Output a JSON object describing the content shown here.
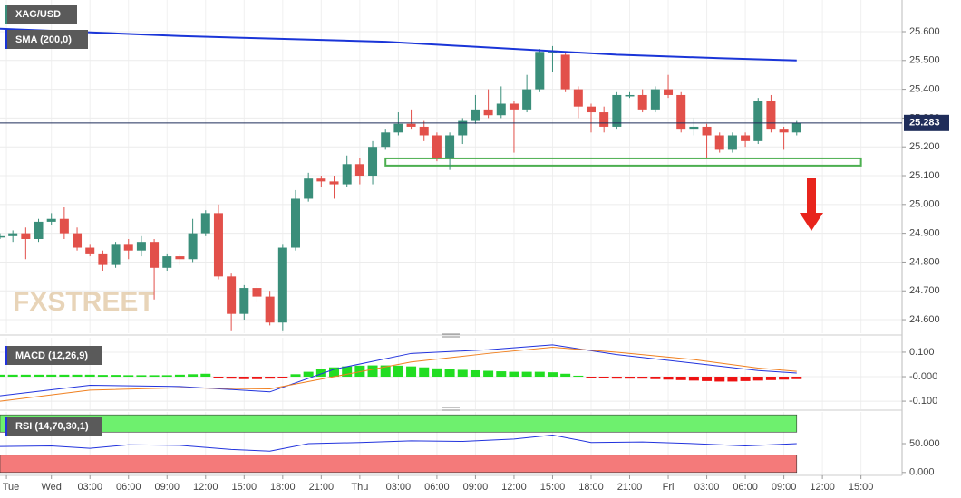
{
  "chart_data": [
    {
      "type": "candlestick",
      "title": "XAG/USD",
      "watermark": "FXSTREET",
      "up_color": "#3a8e7a",
      "down_color": "#e2504a",
      "xlim": [
        -4,
        66.2
      ],
      "ylim": [
        24.553,
        25.71
      ],
      "yticks": [
        {
          "value": 24.6,
          "label": "24.600"
        },
        {
          "value": 24.7,
          "label": "24.700"
        },
        {
          "value": 24.8,
          "label": "24.800"
        },
        {
          "value": 24.9,
          "label": "24.900"
        },
        {
          "value": 25.0,
          "label": "25.000"
        },
        {
          "value": 25.1,
          "label": "25.100"
        },
        {
          "value": 25.2,
          "label": "25.200"
        },
        {
          "value": 25.3,
          "label": "25.300"
        },
        {
          "value": 25.4,
          "label": "25.400"
        },
        {
          "value": 25.5,
          "label": "25.500"
        },
        {
          "value": 25.6,
          "label": "25.600"
        }
      ],
      "grid": true,
      "x": [
        -4,
        -3,
        -2,
        -1,
        0,
        1,
        2,
        3,
        4,
        5,
        6,
        7,
        8,
        9,
        10,
        11,
        12,
        13,
        14,
        15,
        16,
        17,
        18,
        19,
        20,
        21,
        22,
        23,
        24,
        25,
        26,
        27,
        28,
        29,
        30,
        31,
        32,
        33,
        34,
        35,
        36,
        37,
        38,
        39,
        40,
        41,
        42,
        43,
        44,
        45,
        46,
        47,
        48,
        49,
        50,
        51,
        52,
        53,
        54,
        55,
        56,
        57,
        58
      ],
      "open": [
        24.89,
        24.89,
        24.9,
        24.88,
        24.94,
        24.95,
        24.9,
        24.85,
        24.83,
        24.79,
        24.86,
        24.84,
        24.87,
        24.78,
        24.82,
        24.81,
        24.9,
        24.97,
        24.75,
        24.62,
        24.71,
        24.68,
        24.59,
        24.85,
        25.02,
        25.09,
        25.08,
        25.07,
        25.14,
        25.1,
        25.2,
        25.25,
        25.28,
        25.27,
        25.24,
        25.16,
        25.24,
        25.29,
        25.33,
        25.31,
        25.35,
        25.33,
        25.4,
        25.53,
        25.52,
        25.4,
        25.34,
        25.32,
        25.27,
        25.38,
        25.38,
        25.33,
        25.4,
        25.38,
        25.26,
        25.27,
        25.24,
        25.19,
        25.24,
        25.22,
        25.36,
        25.26,
        25.25
      ],
      "high": [
        24.9,
        24.91,
        24.92,
        24.95,
        24.97,
        24.99,
        24.92,
        24.86,
        24.84,
        24.87,
        24.88,
        24.89,
        24.88,
        24.83,
        24.83,
        24.95,
        24.98,
        25.0,
        24.76,
        24.72,
        24.73,
        24.7,
        24.86,
        25.05,
        25.11,
        25.1,
        25.1,
        25.17,
        25.16,
        25.22,
        25.26,
        25.32,
        25.33,
        25.29,
        25.25,
        25.25,
        25.3,
        25.38,
        25.4,
        25.41,
        25.36,
        25.45,
        25.54,
        25.55,
        25.53,
        25.41,
        25.35,
        25.34,
        25.39,
        25.39,
        25.4,
        25.41,
        25.45,
        25.39,
        25.3,
        25.28,
        25.25,
        25.25,
        25.25,
        25.37,
        25.38,
        25.27,
        25.29
      ],
      "low": [
        24.88,
        24.87,
        24.81,
        24.87,
        24.93,
        24.88,
        24.84,
        24.82,
        24.77,
        24.78,
        24.81,
        24.82,
        24.67,
        24.77,
        24.79,
        24.8,
        24.89,
        24.74,
        24.56,
        24.6,
        24.66,
        24.58,
        24.56,
        24.84,
        25.01,
        25.06,
        25.02,
        25.06,
        25.07,
        25.07,
        25.19,
        25.24,
        25.26,
        25.22,
        25.15,
        25.12,
        25.21,
        25.28,
        25.3,
        25.3,
        25.18,
        25.32,
        25.39,
        25.46,
        25.39,
        25.3,
        25.25,
        25.25,
        25.26,
        25.37,
        25.32,
        25.32,
        25.37,
        25.25,
        25.24,
        25.16,
        25.18,
        25.18,
        25.2,
        25.21,
        25.25,
        25.19,
        25.24
      ],
      "close": [
        24.89,
        24.9,
        24.88,
        24.94,
        24.95,
        24.9,
        24.85,
        24.83,
        24.79,
        24.86,
        24.84,
        24.87,
        24.78,
        24.82,
        24.81,
        24.9,
        24.97,
        24.75,
        24.62,
        24.71,
        24.68,
        24.59,
        24.85,
        25.02,
        25.09,
        25.08,
        25.07,
        25.14,
        25.1,
        25.2,
        25.25,
        25.28,
        25.27,
        25.24,
        25.16,
        25.24,
        25.29,
        25.33,
        25.31,
        25.35,
        25.33,
        25.4,
        25.53,
        25.53,
        25.4,
        25.34,
        25.32,
        25.27,
        25.38,
        25.38,
        25.33,
        25.4,
        25.38,
        25.26,
        25.27,
        25.24,
        25.19,
        25.24,
        25.22,
        25.36,
        25.26,
        25.25,
        25.283
      ],
      "overlays": [
        {
          "name": "SMA (200,0)",
          "color": "#1a35d8",
          "x": [
            -4,
            10,
            26,
            38,
            44,
            52,
            58
          ],
          "values": [
            25.61,
            25.585,
            25.565,
            25.535,
            25.52,
            25.508,
            25.5
          ]
        }
      ],
      "last_price": {
        "value": 25.283,
        "label": "25.283",
        "color": "#1f2d5a"
      },
      "zone": {
        "x": [
          26,
          63
        ],
        "y": [
          25.135,
          25.16
        ],
        "color": "#4caf50"
      }
    },
    {
      "type": "macd",
      "title": "MACD (12,26,9)",
      "xlim": [
        -4,
        66.2
      ],
      "ylim": [
        -0.133,
        0.159
      ],
      "yticks": [
        {
          "value": 0.1,
          "label": "0.100"
        },
        {
          "value": 0,
          "label": "-0.000"
        },
        {
          "value": -0.1,
          "label": "-0.100"
        }
      ],
      "grid": true,
      "up_color": "#22dd22",
      "down_color": "#ee1111",
      "x": [
        -4,
        -3,
        -2,
        -1,
        0,
        1,
        2,
        3,
        4,
        5,
        6,
        7,
        8,
        9,
        10,
        11,
        12,
        13,
        14,
        15,
        16,
        17,
        18,
        19,
        20,
        21,
        22,
        23,
        24,
        25,
        26,
        27,
        28,
        29,
        30,
        31,
        32,
        33,
        34,
        35,
        36,
        37,
        38,
        39,
        40,
        41,
        42,
        43,
        44,
        45,
        46,
        47,
        48,
        49,
        50,
        51,
        52,
        53,
        54,
        55,
        56,
        57,
        58
      ],
      "histogram": [
        0.008,
        0.008,
        0.008,
        0.008,
        0.008,
        0.008,
        0.008,
        0.008,
        0.007,
        0.007,
        0.006,
        0.006,
        0.006,
        0.006,
        0.008,
        0.01,
        0.012,
        -0.004,
        -0.008,
        -0.01,
        -0.01,
        -0.008,
        -0.004,
        0.01,
        0.02,
        0.03,
        0.038,
        0.042,
        0.045,
        0.046,
        0.046,
        0.045,
        0.042,
        0.038,
        0.034,
        0.03,
        0.028,
        0.026,
        0.024,
        0.022,
        0.02,
        0.02,
        0.02,
        0.018,
        0.012,
        0.004,
        -0.004,
        -0.006,
        -0.008,
        -0.008,
        -0.008,
        -0.01,
        -0.012,
        -0.014,
        -0.016,
        -0.018,
        -0.02,
        -0.02,
        -0.018,
        -0.016,
        -0.014,
        -0.012,
        -0.01
      ],
      "series": [
        {
          "name": "MACD",
          "color": "#2233dd",
          "x": [
            -4,
            3,
            10,
            17,
            22,
            28,
            34,
            39,
            44,
            50,
            55,
            58
          ],
          "values": [
            -0.078,
            -0.035,
            -0.04,
            -0.062,
            0.03,
            0.095,
            0.11,
            0.13,
            0.09,
            0.055,
            0.025,
            0.015
          ]
        },
        {
          "name": "Signal",
          "color": "#f08020",
          "x": [
            -4,
            3,
            10,
            17,
            22,
            28,
            34,
            39,
            44,
            50,
            55,
            58
          ],
          "values": [
            -0.1,
            -0.055,
            -0.045,
            -0.05,
            0.0,
            0.06,
            0.095,
            0.12,
            0.1,
            0.07,
            0.035,
            0.022
          ]
        }
      ]
    },
    {
      "type": "rsi",
      "title": "RSI (14,70,30,1)",
      "xlim": [
        -4,
        66.2
      ],
      "ylim": [
        -5,
        105
      ],
      "yticks": [
        {
          "value": 50,
          "label": "50.000"
        },
        {
          "value": 0,
          "label": "0.000"
        }
      ],
      "bands": [
        {
          "range": [
            70,
            100
          ],
          "color": "#6ef06e"
        },
        {
          "range": [
            0,
            30
          ],
          "color": "#f47a7a"
        }
      ],
      "line": {
        "color": "#2233dd",
        "x": [
          -4,
          0,
          3,
          6,
          10,
          14,
          17,
          20,
          24,
          28,
          32,
          36,
          39,
          42,
          46,
          50,
          54,
          58
        ],
        "values": [
          45,
          46,
          42,
          48,
          47,
          40,
          37,
          50,
          52,
          55,
          54,
          58,
          65,
          52,
          53,
          50,
          46,
          50
        ]
      },
      "xticks": [
        {
          "value": -3.5,
          "label": "Tue"
        },
        {
          "value": 0,
          "label": "Wed"
        },
        {
          "value": 3,
          "label": "03:00"
        },
        {
          "value": 6,
          "label": "06:00"
        },
        {
          "value": 9,
          "label": "09:00"
        },
        {
          "value": 12,
          "label": "12:00"
        },
        {
          "value": 15,
          "label": "15:00"
        },
        {
          "value": 18,
          "label": "18:00"
        },
        {
          "value": 21,
          "label": "21:00"
        },
        {
          "value": 24,
          "label": "Thu"
        },
        {
          "value": 27,
          "label": "03:00"
        },
        {
          "value": 30,
          "label": "06:00"
        },
        {
          "value": 33,
          "label": "09:00"
        },
        {
          "value": 36,
          "label": "12:00"
        },
        {
          "value": 39,
          "label": "15:00"
        },
        {
          "value": 42,
          "label": "18:00"
        },
        {
          "value": 45,
          "label": "21:00"
        },
        {
          "value": 48,
          "label": "Fri"
        },
        {
          "value": 51,
          "label": "03:00"
        },
        {
          "value": 54,
          "label": "06:00"
        },
        {
          "value": 57,
          "label": "09:00"
        },
        {
          "value": 60,
          "label": "12:00"
        },
        {
          "value": 63,
          "label": "15:00"
        }
      ]
    }
  ]
}
